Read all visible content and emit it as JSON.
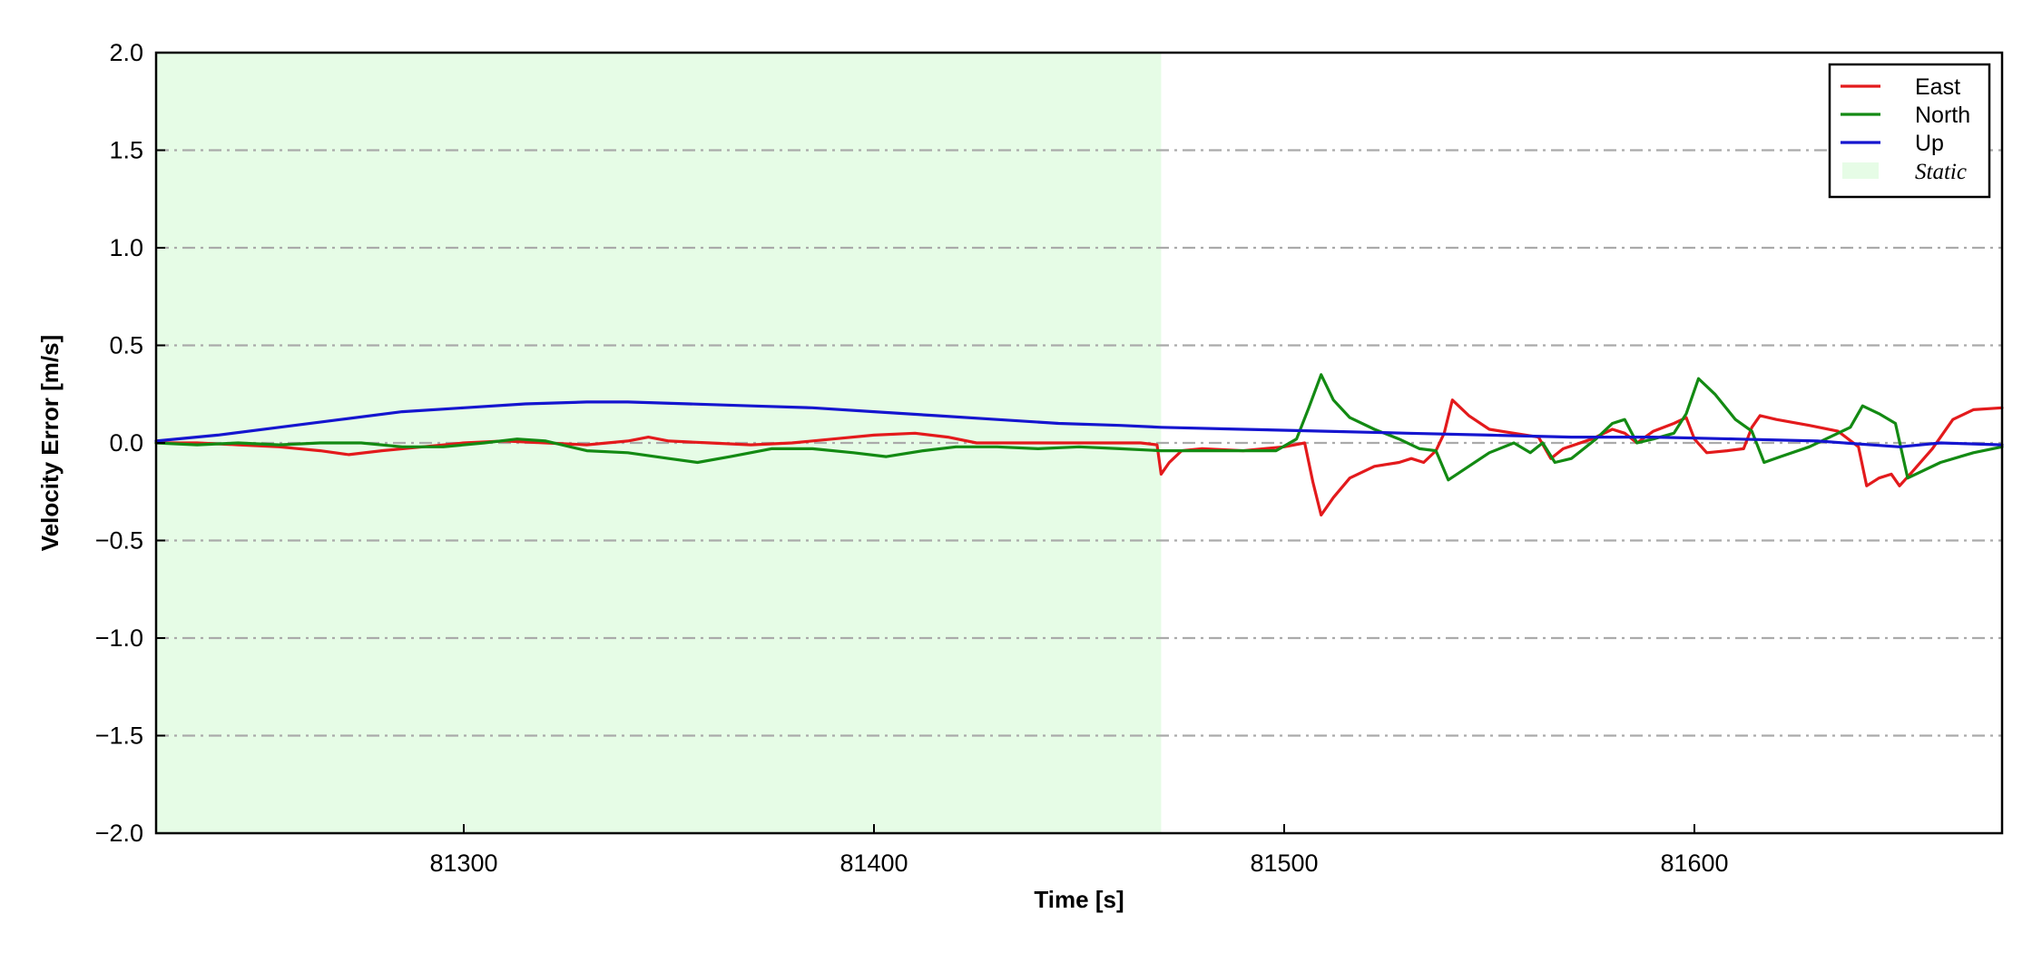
{
  "chart_data": {
    "type": "line",
    "title": "",
    "xlabel": "Time [s]",
    "ylabel": "Velocity Error [m/s]",
    "xlim": [
      81225,
      81675
    ],
    "ylim": [
      -2.0,
      2.0
    ],
    "x_ticks": [
      81300,
      81400,
      81500,
      81600
    ],
    "x_tick_labels": [
      "81300",
      "81400",
      "81500",
      "81600"
    ],
    "y_ticks": [
      2.0,
      1.5,
      1.0,
      0.5,
      0.0,
      -0.5,
      -1.0,
      -1.5,
      -2.0
    ],
    "y_tick_labels": [
      "2.0",
      "1.5",
      "1.0",
      "0.5",
      "0.0",
      "−0.5",
      "−1.0",
      "−1.5",
      "−2.0"
    ],
    "grid": "horizontal dash-dot",
    "legend_position": "top-right",
    "shaded_region": {
      "label": "Static",
      "x_start": 81225,
      "x_end": 81470,
      "color": "#e6fce6"
    },
    "series": [
      {
        "name": "East",
        "color": "#e31a1c",
        "points": [
          [
            81225,
            0.0
          ],
          [
            81235,
            0.0
          ],
          [
            81245,
            -0.01
          ],
          [
            81255,
            -0.02
          ],
          [
            81265,
            -0.04
          ],
          [
            81272,
            -0.06
          ],
          [
            81280,
            -0.04
          ],
          [
            81290,
            -0.02
          ],
          [
            81300,
            0.0
          ],
          [
            81310,
            0.01
          ],
          [
            81320,
            0.0
          ],
          [
            81330,
            -0.01
          ],
          [
            81340,
            0.01
          ],
          [
            81345,
            0.03
          ],
          [
            81350,
            0.01
          ],
          [
            81360,
            0.0
          ],
          [
            81370,
            -0.01
          ],
          [
            81380,
            0.0
          ],
          [
            81390,
            0.02
          ],
          [
            81400,
            0.04
          ],
          [
            81410,
            0.05
          ],
          [
            81418,
            0.03
          ],
          [
            81425,
            0.0
          ],
          [
            81435,
            0.0
          ],
          [
            81445,
            0.0
          ],
          [
            81455,
            0.0
          ],
          [
            81465,
            0.0
          ],
          [
            81469,
            -0.01
          ],
          [
            81470,
            -0.16
          ],
          [
            81472,
            -0.1
          ],
          [
            81475,
            -0.04
          ],
          [
            81480,
            -0.03
          ],
          [
            81490,
            -0.04
          ],
          [
            81500,
            -0.02
          ],
          [
            81505,
            0.0
          ],
          [
            81507,
            -0.2
          ],
          [
            81509,
            -0.37
          ],
          [
            81512,
            -0.28
          ],
          [
            81516,
            -0.18
          ],
          [
            81522,
            -0.12
          ],
          [
            81528,
            -0.1
          ],
          [
            81531,
            -0.08
          ],
          [
            81534,
            -0.1
          ],
          [
            81537,
            -0.04
          ],
          [
            81539,
            0.05
          ],
          [
            81541,
            0.22
          ],
          [
            81545,
            0.14
          ],
          [
            81550,
            0.07
          ],
          [
            81556,
            0.05
          ],
          [
            81562,
            0.03
          ],
          [
            81565,
            -0.08
          ],
          [
            81568,
            -0.03
          ],
          [
            81575,
            0.02
          ],
          [
            81580,
            0.07
          ],
          [
            81583,
            0.05
          ],
          [
            81586,
            0.0
          ],
          [
            81590,
            0.06
          ],
          [
            81595,
            0.1
          ],
          [
            81598,
            0.13
          ],
          [
            81600,
            0.02
          ],
          [
            81603,
            -0.05
          ],
          [
            81608,
            -0.04
          ],
          [
            81612,
            -0.03
          ],
          [
            81614,
            0.08
          ],
          [
            81616,
            0.14
          ],
          [
            81620,
            0.12
          ],
          [
            81628,
            0.09
          ],
          [
            81635,
            0.06
          ],
          [
            81640,
            -0.02
          ],
          [
            81642,
            -0.22
          ],
          [
            81645,
            -0.18
          ],
          [
            81648,
            -0.16
          ],
          [
            81650,
            -0.22
          ],
          [
            81653,
            -0.15
          ],
          [
            81658,
            -0.03
          ],
          [
            81663,
            0.12
          ],
          [
            81668,
            0.17
          ],
          [
            81675,
            0.18
          ]
        ]
      },
      {
        "name": "North",
        "color": "#138a13",
        "points": [
          [
            81225,
            0.0
          ],
          [
            81235,
            -0.01
          ],
          [
            81245,
            0.0
          ],
          [
            81255,
            -0.01
          ],
          [
            81265,
            0.0
          ],
          [
            81275,
            0.0
          ],
          [
            81285,
            -0.02
          ],
          [
            81295,
            -0.02
          ],
          [
            81305,
            0.0
          ],
          [
            81313,
            0.02
          ],
          [
            81320,
            0.01
          ],
          [
            81330,
            -0.04
          ],
          [
            81340,
            -0.05
          ],
          [
            81350,
            -0.08
          ],
          [
            81357,
            -0.1
          ],
          [
            81365,
            -0.07
          ],
          [
            81375,
            -0.03
          ],
          [
            81385,
            -0.03
          ],
          [
            81395,
            -0.05
          ],
          [
            81403,
            -0.07
          ],
          [
            81412,
            -0.04
          ],
          [
            81420,
            -0.02
          ],
          [
            81430,
            -0.02
          ],
          [
            81440,
            -0.03
          ],
          [
            81450,
            -0.02
          ],
          [
            81460,
            -0.03
          ],
          [
            81470,
            -0.04
          ],
          [
            81480,
            -0.04
          ],
          [
            81490,
            -0.04
          ],
          [
            81498,
            -0.04
          ],
          [
            81503,
            0.02
          ],
          [
            81506,
            0.18
          ],
          [
            81509,
            0.35
          ],
          [
            81512,
            0.22
          ],
          [
            81516,
            0.13
          ],
          [
            81522,
            0.07
          ],
          [
            81528,
            0.02
          ],
          [
            81533,
            -0.03
          ],
          [
            81537,
            -0.04
          ],
          [
            81540,
            -0.19
          ],
          [
            81545,
            -0.12
          ],
          [
            81550,
            -0.05
          ],
          [
            81556,
            0.0
          ],
          [
            81560,
            -0.05
          ],
          [
            81563,
            0.0
          ],
          [
            81566,
            -0.1
          ],
          [
            81570,
            -0.08
          ],
          [
            81576,
            0.02
          ],
          [
            81580,
            0.1
          ],
          [
            81583,
            0.12
          ],
          [
            81586,
            0.0
          ],
          [
            81590,
            0.02
          ],
          [
            81595,
            0.05
          ],
          [
            81598,
            0.15
          ],
          [
            81601,
            0.33
          ],
          [
            81605,
            0.25
          ],
          [
            81610,
            0.12
          ],
          [
            81614,
            0.06
          ],
          [
            81617,
            -0.1
          ],
          [
            81621,
            -0.07
          ],
          [
            81628,
            -0.02
          ],
          [
            81635,
            0.05
          ],
          [
            81638,
            0.08
          ],
          [
            81641,
            0.19
          ],
          [
            81645,
            0.15
          ],
          [
            81649,
            0.1
          ],
          [
            81652,
            -0.18
          ],
          [
            81660,
            -0.1
          ],
          [
            81668,
            -0.05
          ],
          [
            81675,
            -0.02
          ]
        ]
      },
      {
        "name": "Up",
        "color": "#1515cf",
        "points": [
          [
            81225,
            0.01
          ],
          [
            81240,
            0.04
          ],
          [
            81255,
            0.08
          ],
          [
            81270,
            0.12
          ],
          [
            81285,
            0.16
          ],
          [
            81300,
            0.18
          ],
          [
            81315,
            0.2
          ],
          [
            81330,
            0.21
          ],
          [
            81340,
            0.21
          ],
          [
            81355,
            0.2
          ],
          [
            81370,
            0.19
          ],
          [
            81385,
            0.18
          ],
          [
            81400,
            0.16
          ],
          [
            81415,
            0.14
          ],
          [
            81430,
            0.12
          ],
          [
            81445,
            0.1
          ],
          [
            81460,
            0.09
          ],
          [
            81470,
            0.08
          ],
          [
            81490,
            0.07
          ],
          [
            81510,
            0.06
          ],
          [
            81530,
            0.05
          ],
          [
            81550,
            0.04
          ],
          [
            81570,
            0.03
          ],
          [
            81590,
            0.03
          ],
          [
            81610,
            0.02
          ],
          [
            81630,
            0.01
          ],
          [
            81650,
            -0.02
          ],
          [
            81660,
            0.0
          ],
          [
            81675,
            -0.01
          ]
        ]
      }
    ]
  }
}
